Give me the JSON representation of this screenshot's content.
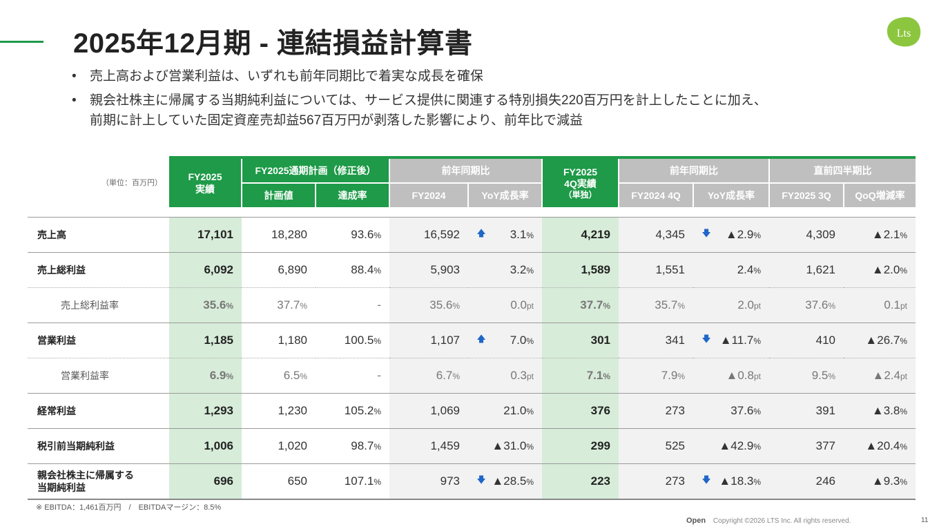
{
  "page": {
    "title": "2025年12月期 - 連結損益計算書",
    "logo_text": "Lts",
    "brand_color": "#1e9a48",
    "page_number": "11",
    "footer_open": "Open",
    "footer_copyright": "Copyright ©2026 LTS Inc. All rights reserved.",
    "footnote": "※ EBITDA：1,461百万円　/　EBITDAマージン：8.5%"
  },
  "bullets": [
    {
      "lines": [
        "売上高および営業利益は、いずれも前年同期比で着実な成長を確保"
      ]
    },
    {
      "lines": [
        "親会社株主に帰属する当期純利益については、サービス提供に関連する特別損失220百万円を計上したことに加え、",
        "前期に計上していた固定資産売却益567百万円が剥落した影響により、前年比で減益"
      ]
    }
  ],
  "table": {
    "unit_label": "（単位：百万円）",
    "headers": {
      "fy2025_actual": "FY2025\n実績",
      "plan_group": "FY2025通期計画（修正後）",
      "plan_value": "計画値",
      "achievement": "達成率",
      "yoy_group": "前年同期比",
      "fy2024": "FY2024",
      "yoy_growth": "YoY成長率",
      "q4_actual_line1": "FY2025",
      "q4_actual_line2": "4Q実績",
      "q4_actual_line3": "（単独）",
      "q4_yoy_group": "前年同期比",
      "fy2024_4q": "FY2024 4Q",
      "q4_yoy_growth": "YoY成長率",
      "qoq_group": "直前四半期比",
      "fy2025_3q": "FY2025 3Q",
      "qoq_change": "QoQ増減率"
    },
    "rows": [
      {
        "label": "売上高",
        "sub": false,
        "vals": [
          "17,101",
          "18,280",
          "93.6",
          "16,592",
          "3.1",
          "4,219",
          "4,345",
          "▲2.9",
          "4,309",
          "▲2.1"
        ],
        "units": [
          "",
          "",
          "%",
          "",
          "%",
          "",
          "",
          "%",
          "",
          "%"
        ],
        "arrows": {
          "yoy": "up",
          "q4yoy": "down"
        }
      },
      {
        "label": "売上総利益",
        "sub": false,
        "vals": [
          "6,092",
          "6,890",
          "88.4",
          "5,903",
          "3.2",
          "1,589",
          "1,551",
          "2.4",
          "1,621",
          "▲2.0"
        ],
        "units": [
          "",
          "",
          "%",
          "",
          "%",
          "",
          "",
          "%",
          "",
          "%"
        ],
        "arrows": {}
      },
      {
        "label": "売上総利益率",
        "sub": true,
        "vals": [
          "35.6",
          "37.7",
          "-",
          "35.6",
          "0.0",
          "37.7",
          "35.7",
          "2.0",
          "37.6",
          "0.1"
        ],
        "units": [
          "%",
          "%",
          "",
          "%",
          "pt",
          "%",
          "%",
          "pt",
          "%",
          "pt"
        ],
        "arrows": {}
      },
      {
        "label": "営業利益",
        "sub": false,
        "vals": [
          "1,185",
          "1,180",
          "100.5",
          "1,107",
          "7.0",
          "301",
          "341",
          "▲11.7",
          "410",
          "▲26.7"
        ],
        "units": [
          "",
          "",
          "%",
          "",
          "%",
          "",
          "",
          "%",
          "",
          "%"
        ],
        "arrows": {
          "yoy": "up",
          "q4yoy": "down"
        }
      },
      {
        "label": "営業利益率",
        "sub": true,
        "vals": [
          "6.9",
          "6.5",
          "-",
          "6.7",
          "0.3",
          "7.1",
          "7.9",
          "▲0.8",
          "9.5",
          "▲2.4"
        ],
        "units": [
          "%",
          "%",
          "",
          "%",
          "pt",
          "%",
          "%",
          "pt",
          "%",
          "pt"
        ],
        "arrows": {}
      },
      {
        "label": "経常利益",
        "sub": false,
        "vals": [
          "1,293",
          "1,230",
          "105.2",
          "1,069",
          "21.0",
          "376",
          "273",
          "37.6",
          "391",
          "▲3.8"
        ],
        "units": [
          "",
          "",
          "%",
          "",
          "%",
          "",
          "",
          "%",
          "",
          "%"
        ],
        "arrows": {}
      },
      {
        "label": "税引前当期純利益",
        "sub": false,
        "vals": [
          "1,006",
          "1,020",
          "98.7",
          "1,459",
          "▲31.0",
          "299",
          "525",
          "▲42.9",
          "377",
          "▲20.4"
        ],
        "units": [
          "",
          "",
          "%",
          "",
          "%",
          "",
          "",
          "%",
          "",
          "%"
        ],
        "arrows": {}
      },
      {
        "label": "親会社株主に帰属する\n当期純利益",
        "sub": false,
        "vals": [
          "696",
          "650",
          "107.1",
          "973",
          "▲28.5",
          "223",
          "273",
          "▲18.3",
          "246",
          "▲9.3"
        ],
        "units": [
          "",
          "",
          "%",
          "",
          "%",
          "",
          "",
          "%",
          "",
          "%"
        ],
        "arrows": {
          "yoy": "down",
          "q4yoy": "down"
        }
      }
    ]
  },
  "icons": {
    "up_arrow": "arrow-up-icon",
    "down_arrow": "arrow-down-icon"
  }
}
